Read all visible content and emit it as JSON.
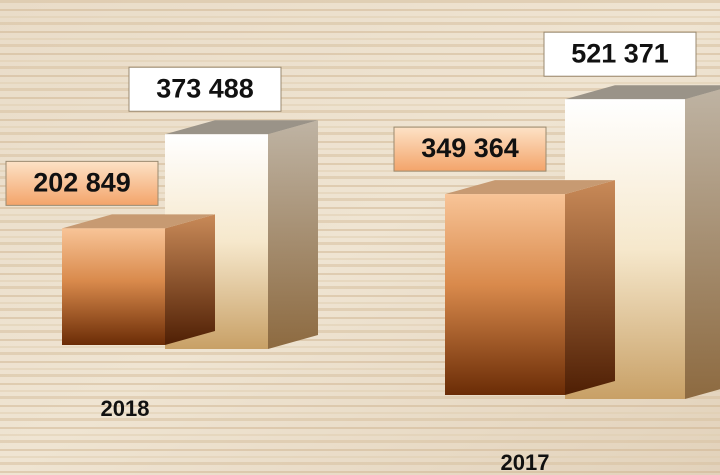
{
  "chart_data": {
    "type": "bar3d",
    "categories": [
      "2018",
      "2017"
    ],
    "series": [
      {
        "color": "#e9a066",
        "values": [
          202849,
          349364
        ],
        "value_labels": [
          "202 849",
          "349 364"
        ]
      },
      {
        "color": "#f6ead2",
        "values": [
          373488,
          521371
        ],
        "value_labels": [
          "373 488",
          "521 371"
        ]
      }
    ]
  }
}
